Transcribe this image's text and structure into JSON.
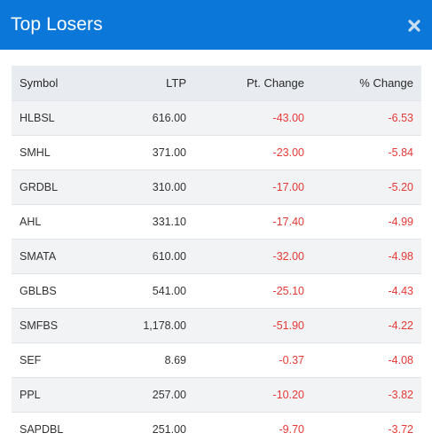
{
  "header": {
    "title": "Top Losers",
    "background_color": "#0b78d9",
    "close_icon": "close-icon"
  },
  "table": {
    "columns": [
      "Symbol",
      "LTP",
      "Pt. Change",
      "% Change"
    ],
    "rows": [
      {
        "symbol": "HLBSL",
        "ltp": "616.00",
        "pt_change": "-43.00",
        "pct_change": "-6.53"
      },
      {
        "symbol": "SMHL",
        "ltp": "371.00",
        "pt_change": "-23.00",
        "pct_change": "-5.84"
      },
      {
        "symbol": "GRDBL",
        "ltp": "310.00",
        "pt_change": "-17.00",
        "pct_change": "-5.20"
      },
      {
        "symbol": "AHL",
        "ltp": "331.10",
        "pt_change": "-17.40",
        "pct_change": "-4.99"
      },
      {
        "symbol": "SMATA",
        "ltp": "610.00",
        "pt_change": "-32.00",
        "pct_change": "-4.98"
      },
      {
        "symbol": "GBLBS",
        "ltp": "541.00",
        "pt_change": "-25.10",
        "pct_change": "-4.43"
      },
      {
        "symbol": "SMFBS",
        "ltp": "1,178.00",
        "pt_change": "-51.90",
        "pct_change": "-4.22"
      },
      {
        "symbol": "SEF",
        "ltp": "8.69",
        "pt_change": "-0.37",
        "pct_change": "-4.08"
      },
      {
        "symbol": "PPL",
        "ltp": "257.00",
        "pt_change": "-10.20",
        "pct_change": "-3.82"
      },
      {
        "symbol": "SAPDBL",
        "ltp": "251.00",
        "pt_change": "-9.70",
        "pct_change": "-3.72"
      }
    ],
    "negative_color": "#e53935"
  }
}
